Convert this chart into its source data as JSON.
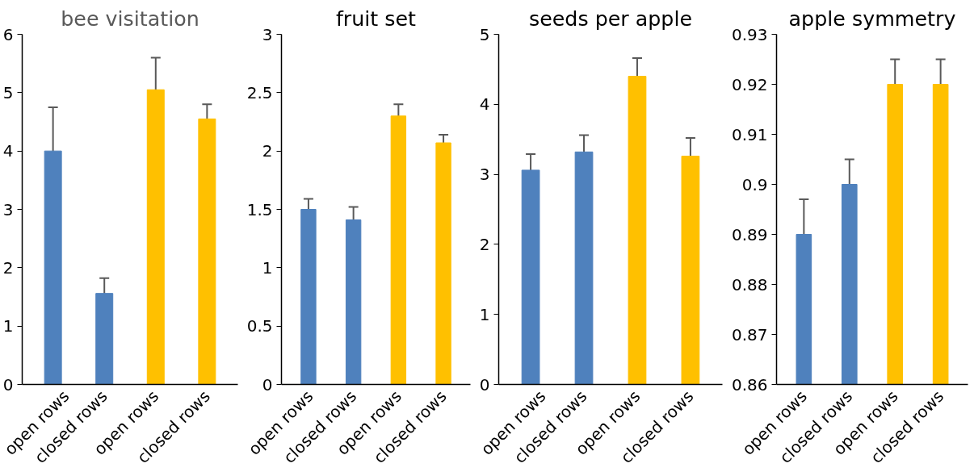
{
  "chart_data": [
    {
      "type": "bar",
      "title": "bee visitation",
      "categories": [
        "open rows",
        "closed rows",
        "open rows",
        "closed rows"
      ],
      "values": [
        4.0,
        1.56,
        5.05,
        4.55
      ],
      "colors": [
        "#4f81bd",
        "#4f81bd",
        "#ffc000",
        "#ffc000"
      ],
      "errors": [
        0.75,
        0.26,
        0.55,
        0.25
      ],
      "ylim": [
        0,
        6
      ],
      "yticks": [
        0,
        1,
        2,
        3,
        4,
        5,
        6
      ],
      "grid": false
    },
    {
      "type": "bar",
      "title": "fruit set",
      "categories": [
        "open rows",
        "closed rows",
        "open rows",
        "closed rows"
      ],
      "values": [
        1.5,
        1.41,
        2.3,
        2.07
      ],
      "colors": [
        "#4f81bd",
        "#4f81bd",
        "#ffc000",
        "#ffc000"
      ],
      "errors": [
        0.09,
        0.11,
        0.1,
        0.07
      ],
      "ylim": [
        0,
        3
      ],
      "yticks": [
        0,
        0.5,
        1,
        1.5,
        2,
        2.5,
        3
      ],
      "grid": false
    },
    {
      "type": "bar",
      "title": "seeds per apple",
      "categories": [
        "open rows",
        "closed rows",
        "open rows",
        "closed rows"
      ],
      "values": [
        3.06,
        3.32,
        4.4,
        3.26
      ],
      "colors": [
        "#4f81bd",
        "#4f81bd",
        "#ffc000",
        "#ffc000"
      ],
      "errors": [
        0.23,
        0.24,
        0.26,
        0.26
      ],
      "ylim": [
        0,
        5
      ],
      "yticks": [
        0,
        1,
        2,
        3,
        4,
        5
      ],
      "grid": false
    },
    {
      "type": "bar",
      "title": "apple symmetry",
      "categories": [
        "open rows",
        "closed rows",
        "open rows",
        "closed rows"
      ],
      "values": [
        0.89,
        0.9,
        0.92,
        0.92
      ],
      "colors": [
        "#4f81bd",
        "#4f81bd",
        "#ffc000",
        "#ffc000"
      ],
      "errors": [
        0.007,
        0.005,
        0.005,
        0.005
      ],
      "ylim": [
        0.86,
        0.93
      ],
      "yticks": [
        0.86,
        0.87,
        0.88,
        0.89,
        0.9,
        0.91,
        0.92,
        0.93
      ],
      "grid": false
    }
  ]
}
